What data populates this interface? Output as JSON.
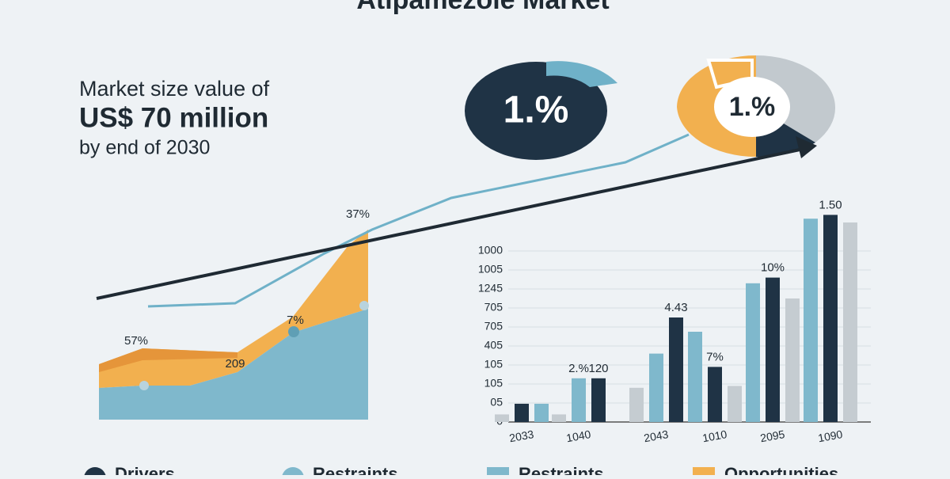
{
  "title": "Atipamezole Market",
  "headline": {
    "line1": "Market size value of",
    "line2": "US$ 70 million",
    "line3": "by end of 2030"
  },
  "donut_labels": [
    "1.%",
    "1.%"
  ],
  "area_labels": [
    "57%",
    "209",
    "7%",
    "37%"
  ],
  "legend": [
    "Drivers",
    "Restraints",
    "Restraints",
    "Opportunities"
  ],
  "chart_data": {
    "type": "bar",
    "categories": [
      "2033",
      "1040",
      "2043",
      "1010",
      "2095",
      "1090"
    ],
    "ylim": [
      0,
      11
    ],
    "yticks": [
      {
        "value": 0,
        "label": "0"
      },
      {
        "value": 1,
        "label": "05"
      },
      {
        "value": 2,
        "label": "105"
      },
      {
        "value": 3,
        "label": "105"
      },
      {
        "value": 4,
        "label": "405"
      },
      {
        "value": 5,
        "label": "705"
      },
      {
        "value": 6,
        "label": "705"
      },
      {
        "value": 7,
        "label": "1245"
      },
      {
        "value": 8,
        "label": "1005"
      },
      {
        "value": 9,
        "label": "1000"
      }
    ],
    "series": [
      {
        "values": [
          0.4,
          0.4,
          1.8,
          4.75,
          7.3,
          10.7
        ],
        "colors": [
          "#c5ccd1",
          "#c5ccd1",
          "#c5ccd1",
          "#7fb8cc",
          "#7fb8cc",
          "#7fb8cc"
        ]
      },
      {
        "values": [
          0.96,
          2.3,
          3.6,
          2.9,
          7.6,
          10.9
        ],
        "colors": [
          "#1f3345",
          "#7fb8cc",
          "#7fb8cc",
          "#1f3345",
          "#1f3345",
          "#1f3345"
        ]
      },
      {
        "values": [
          0.96,
          2.3,
          5.5,
          1.9,
          6.5,
          10.5
        ],
        "colors": [
          "#7fb8cc",
          "#1f3345",
          "#1f3345",
          "#c5ccd1",
          "#c5ccd1",
          "#c5ccd1"
        ]
      }
    ],
    "annotations": [
      "2.%",
      "120",
      "4.43",
      "7%",
      "10%",
      "1.50"
    ]
  }
}
